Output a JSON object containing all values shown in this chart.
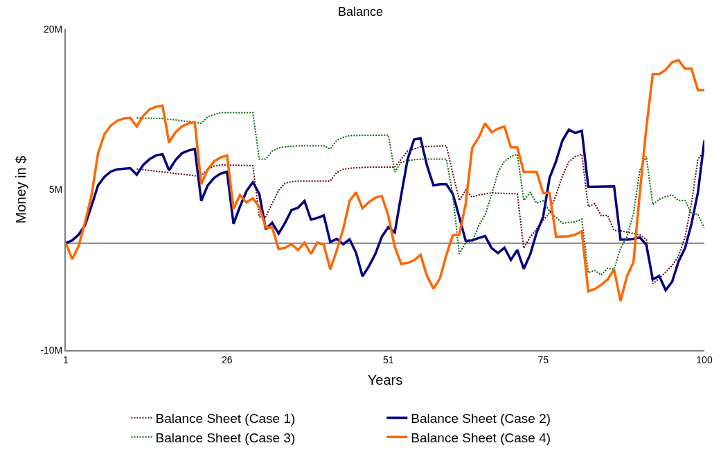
{
  "chart_data": {
    "type": "line",
    "title": "Balance",
    "xlabel": "Years",
    "ylabel": "Money in $",
    "xlim": [
      1,
      100
    ],
    "xticks": [
      1,
      26,
      51,
      75,
      100
    ],
    "ylim": [
      -10,
      20
    ],
    "yticks": [
      {
        "value": -10,
        "label": "-10M"
      },
      {
        "value": 5,
        "label": "5M"
      },
      {
        "value": 20,
        "label": "20M"
      }
    ],
    "grid": false,
    "legend": "bottom",
    "marker": "none",
    "ref_lines": [
      {
        "axis": "y",
        "value": 0,
        "label": null,
        "color": "#808080"
      }
    ],
    "series": [
      {
        "name": "Balance Sheet (Case 1)",
        "color": "#660000",
        "line_style": "dotted",
        "x": [
          12,
          21,
          22,
          23,
          24,
          25,
          30,
          31,
          32,
          33,
          34,
          35,
          36,
          37,
          41,
          42,
          43,
          44,
          45,
          48,
          52,
          53,
          54,
          56,
          60,
          61,
          62,
          63,
          64,
          65,
          67,
          71,
          72,
          73,
          75,
          76,
          77,
          78,
          79,
          80,
          81,
          82,
          83,
          84,
          85,
          86,
          87,
          90,
          91,
          92,
          93,
          94,
          95,
          96,
          97,
          98,
          99,
          100
        ],
        "values": [
          6.93,
          6.3,
          6.3,
          6.9,
          7.2,
          7.3,
          7.25,
          2.45,
          2.45,
          3.7,
          4.95,
          5.6,
          5.75,
          5.8,
          5.8,
          5.8,
          6.6,
          6.9,
          7.0,
          7.1,
          7.1,
          7.85,
          8.6,
          9.0,
          9.1,
          6.5,
          4.0,
          4.95,
          4.3,
          4.5,
          4.7,
          4.6,
          -0.47,
          0.57,
          2.1,
          2.85,
          4.5,
          6.3,
          7.6,
          8.1,
          8.3,
          3.4,
          3.7,
          2.55,
          2.6,
          1.2,
          1.15,
          0.78,
          0.36,
          -3.8,
          -3.3,
          -2.7,
          -2.1,
          -1.2,
          0.57,
          3.7,
          7.85,
          8.6
        ]
      },
      {
        "name": "Balance Sheet (Case 2)",
        "color": "#000080",
        "line_style": "solid",
        "x": [
          1,
          2,
          3,
          4,
          5,
          6,
          7,
          8,
          9,
          11,
          12,
          13,
          14,
          15,
          16,
          17,
          18,
          19,
          20,
          21,
          22,
          23,
          24,
          25,
          26,
          27,
          28,
          29,
          30,
          31,
          32,
          33,
          34,
          35,
          36,
          37,
          38,
          39,
          40,
          41,
          42,
          43,
          44,
          45,
          46,
          47,
          48,
          49,
          50,
          51,
          52,
          53,
          54,
          55,
          56,
          57,
          58,
          59,
          60,
          61,
          62,
          63,
          64,
          65,
          66,
          67,
          68,
          69,
          70,
          71,
          72,
          73,
          74,
          75,
          76,
          77,
          78,
          79,
          80,
          81,
          82,
          86,
          87,
          88,
          89,
          90,
          91,
          92,
          93,
          94,
          95,
          96,
          97,
          98,
          99,
          100
        ],
        "values": [
          0,
          0.26,
          0.8,
          1.7,
          3.5,
          5.4,
          6.2,
          6.7,
          6.9,
          7.0,
          6.4,
          7.3,
          7.85,
          8.2,
          8.3,
          6.8,
          7.75,
          8.4,
          8.65,
          8.8,
          3.95,
          5.4,
          6.1,
          6.5,
          6.65,
          1.8,
          3.4,
          4.85,
          5.7,
          4.6,
          1.3,
          1.9,
          0.9,
          1.9,
          3.1,
          3.3,
          3.95,
          2.2,
          2.35,
          2.6,
          0.1,
          0.4,
          -0.1,
          0.35,
          -0.9,
          -3.1,
          -2.15,
          -1.0,
          0.6,
          1.5,
          1.0,
          4.5,
          7.85,
          9.7,
          9.8,
          7.25,
          5.4,
          5.5,
          5.5,
          4.6,
          2.45,
          0.2,
          0.26,
          0.47,
          0.67,
          -0.45,
          -0.93,
          -0.43,
          -1.57,
          -0.64,
          -2.4,
          -1.05,
          1.0,
          2.45,
          6.1,
          7.65,
          9.6,
          10.6,
          10.3,
          10.5,
          5.26,
          5.3,
          0.33,
          0.33,
          0.4,
          0.53,
          -0.16,
          -3.4,
          -3.07,
          -4.4,
          -3.6,
          -1.7,
          -0.47,
          1.8,
          4.74,
          9.6
        ]
      },
      {
        "name": "Balance Sheet (Case 3)",
        "color": "#006400",
        "line_style": "dotted",
        "x": [
          12,
          16,
          21,
          22,
          23,
          24,
          25,
          30,
          31,
          32,
          33,
          34,
          35,
          37,
          41,
          42,
          43,
          44,
          45,
          51,
          52,
          53,
          54,
          55,
          56,
          60,
          61,
          62,
          63,
          64,
          65,
          66,
          67,
          68,
          69,
          70,
          71,
          72,
          73,
          74,
          75,
          76,
          77,
          78,
          80,
          81,
          82,
          83,
          84,
          85,
          86,
          87,
          88,
          89,
          90,
          91,
          92,
          93,
          94,
          95,
          96,
          97,
          98,
          99,
          100
        ],
        "values": [
          11.69,
          11.65,
          11.3,
          11.2,
          11.8,
          12.0,
          12.2,
          12.2,
          7.85,
          7.85,
          8.6,
          8.9,
          9.0,
          9.1,
          9.1,
          8.8,
          9.6,
          9.9,
          10.05,
          10.1,
          6.65,
          7.55,
          7.7,
          7.8,
          7.85,
          7.85,
          4.5,
          -1.0,
          0.05,
          0.16,
          1.6,
          2.65,
          4.5,
          6.6,
          7.65,
          8.1,
          8.3,
          4.0,
          4.74,
          3.74,
          3.95,
          2.97,
          2.4,
          1.86,
          2.0,
          2.24,
          -2.76,
          -2.55,
          -2.97,
          -2.34,
          -2.45,
          -0.47,
          0.57,
          2.76,
          6.8,
          8.1,
          3.6,
          4.1,
          4.36,
          4.5,
          4.0,
          4.0,
          2.76,
          2.7,
          1.4
        ]
      },
      {
        "name": "Balance Sheet (Case 4)",
        "color": "#ff6600",
        "line_style": "solid",
        "x": [
          1,
          2,
          3,
          4,
          5,
          6,
          7,
          8,
          9,
          10,
          11,
          12,
          13,
          14,
          15,
          16,
          17,
          18,
          19,
          20,
          21,
          22,
          23,
          24,
          25,
          26,
          27,
          28,
          29,
          30,
          31,
          32,
          33,
          34,
          35,
          36,
          37,
          38,
          39,
          40,
          41,
          42,
          43,
          44,
          45,
          46,
          47,
          48,
          49,
          50,
          51,
          52,
          53,
          54,
          55,
          56,
          57,
          58,
          59,
          60,
          61,
          62,
          63,
          64,
          65,
          66,
          67,
          68,
          69,
          70,
          71,
          72,
          74,
          75,
          76,
          77,
          79,
          80,
          81,
          82,
          83,
          84,
          85,
          86,
          87,
          88,
          89,
          90,
          91,
          92,
          93,
          94,
          95,
          96,
          97,
          98,
          99,
          100
        ],
        "values": [
          0,
          -1.5,
          -0.26,
          2.0,
          4.5,
          8.4,
          10.2,
          11.0,
          11.45,
          11.65,
          11.7,
          10.9,
          11.9,
          12.5,
          12.75,
          12.85,
          9.4,
          10.35,
          10.9,
          11.2,
          11.3,
          5.5,
          6.9,
          7.65,
          8.0,
          8.2,
          3.2,
          4.5,
          3.8,
          4.2,
          3.4,
          1.47,
          1.47,
          -0.57,
          -0.43,
          -0.1,
          -0.64,
          0.05,
          -1.0,
          0.05,
          -0.15,
          -2.45,
          -0.7,
          1.3,
          3.95,
          4.75,
          3.25,
          3.85,
          4.25,
          4.4,
          2.55,
          -0.36,
          -1.93,
          -1.86,
          -1.6,
          -1.1,
          -3.07,
          -4.26,
          -3.3,
          -1.1,
          0.74,
          0.8,
          3.7,
          8.9,
          9.85,
          11.2,
          10.36,
          10.7,
          10.9,
          8.95,
          8.95,
          6.65,
          6.65,
          4.7,
          4.7,
          0.6,
          0.65,
          0.8,
          1.1,
          -4.5,
          -4.3,
          -3.9,
          -3.4,
          -2.45,
          -5.4,
          -3.07,
          -1.8,
          4.74,
          10.8,
          15.8,
          15.8,
          16.2,
          16.9,
          17.1,
          16.3,
          16.3,
          14.3,
          14.3
        ]
      }
    ]
  }
}
